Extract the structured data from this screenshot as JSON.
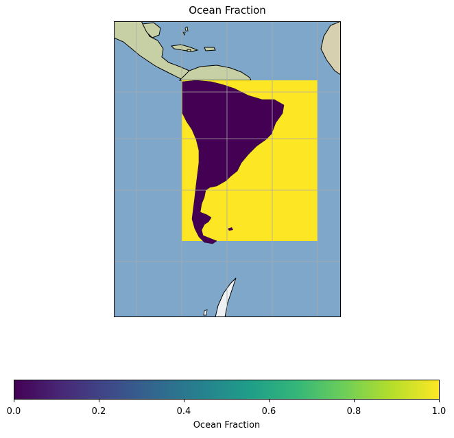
{
  "map": {
    "title": "Ocean Fraction",
    "colormap": "viridis",
    "colors": {
      "ocean_background": "#7fa7c9",
      "land_background": "#c7cfa5",
      "ice": "#eef2f5",
      "grid": "#aaaaaa",
      "coastline": "#000000",
      "ocean_fraction_high": "#fde725",
      "ocean_fraction_low": "#440154"
    },
    "colorbar": {
      "label": "Ocean Fraction",
      "min": 0.0,
      "max": 1.0,
      "ticks": [
        "0.0",
        "0.2",
        "0.4",
        "0.6",
        "0.8",
        "1.0"
      ],
      "stops": [
        "#440154",
        "#482878",
        "#3e4989",
        "#31688e",
        "#26828e",
        "#1f9e89",
        "#35b779",
        "#6ece58",
        "#b5de2b",
        "#fde725"
      ]
    }
  }
}
